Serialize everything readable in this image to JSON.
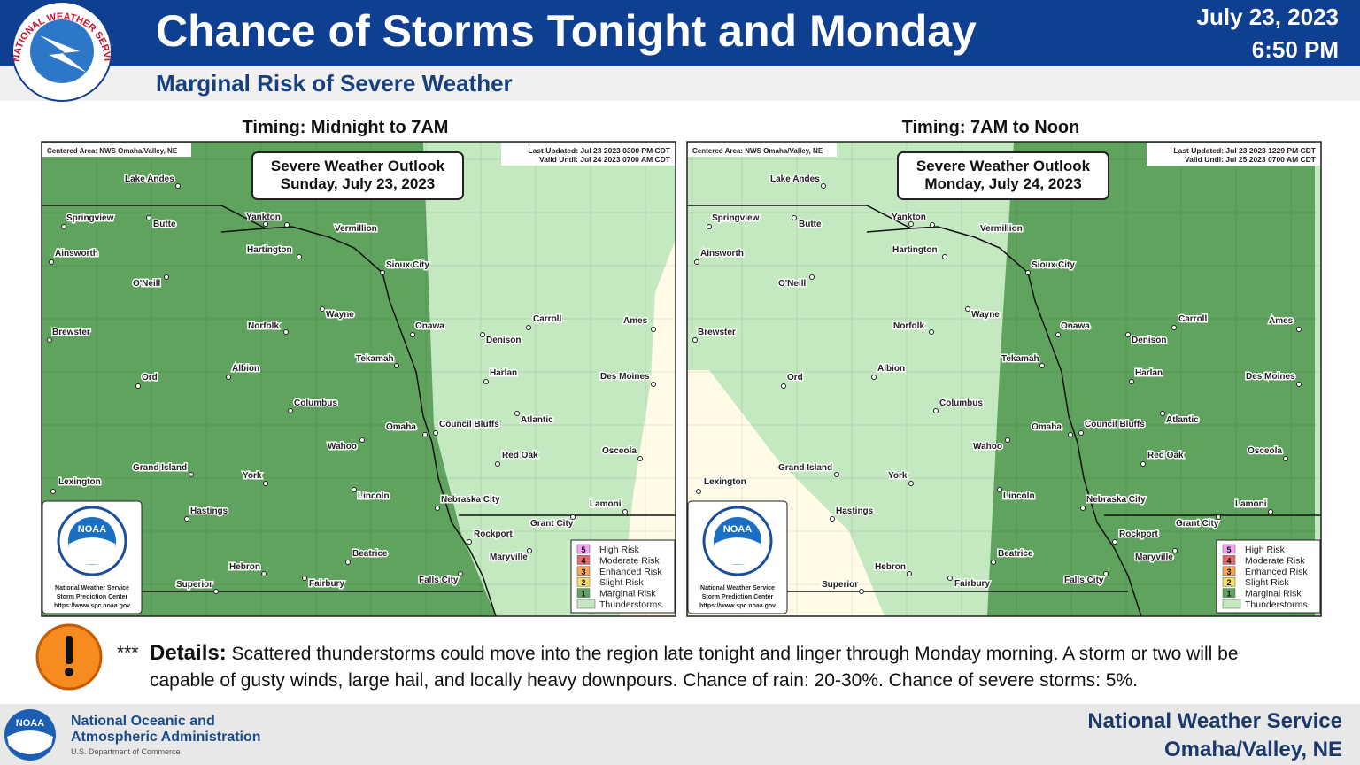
{
  "header": {
    "logo_text": "NATIONAL WEATHER SERVICE",
    "title": "Chance of Storms Tonight and Monday",
    "date": "July 23, 2023",
    "time": "6:50 PM",
    "subtitle": "Marginal Risk of Severe Weather"
  },
  "maps": [
    {
      "timing": "Timing: Midnight to 7AM",
      "outlook_title": "Severe Weather Outlook",
      "outlook_date": "Sunday, July 23, 2023",
      "centered_area": "Centered Area: NWS Omaha/Valley, NE",
      "last_updated": "Last Updated: Jul 23 2023 0300 PM CDT",
      "valid_until": "Valid Until: Jul 24 2023 0700 AM CDT"
    },
    {
      "timing": "Timing: 7AM to Noon",
      "outlook_title": "Severe Weather Outlook",
      "outlook_date": "Monday, July 24, 2023",
      "centered_area": "Centered Area: NWS Omaha/Valley, NE",
      "last_updated": "Last Updated: Jul 23 2023 1229 PM CDT",
      "valid_until": "Valid Until: Jul 25 2023 0700 AM CDT"
    }
  ],
  "cities": [
    "Lake Andes",
    "Springview",
    "Butte",
    "Yankton",
    "Vermillion",
    "Ainsworth",
    "Hartington",
    "Sioux City",
    "O'Neill",
    "Wayne",
    "Norfolk",
    "Onawa",
    "Brewster",
    "Denison",
    "Carroll",
    "Ames",
    "Tekamah",
    "Albion",
    "Harlan",
    "Des Moines",
    "Ord",
    "Columbus",
    "Atlantic",
    "Council Bluffs",
    "Omaha",
    "Wahoo",
    "Red Oak",
    "Osceola",
    "Grand Island",
    "York",
    "Lexington",
    "Lincoln",
    "Nebraska City",
    "Lamoni",
    "Hastings",
    "Grant City",
    "Rockport",
    "Maryville",
    "Beatrice",
    "Hebron",
    "Falls City",
    "Superior",
    "Fairbury"
  ],
  "legend": [
    {
      "level": "5",
      "label": "High Risk"
    },
    {
      "level": "4",
      "label": "Moderate Risk"
    },
    {
      "level": "3",
      "label": "Enhanced Risk"
    },
    {
      "level": "2",
      "label": "Slight Risk"
    },
    {
      "level": "1",
      "label": "Marginal Risk"
    },
    {
      "label": "Thunderstorms"
    }
  ],
  "noaa_badge": {
    "logo": "NOAA",
    "lines": [
      "National Weather Service",
      "Storm Prediction Center",
      "https://www.spc.noaa.gov"
    ]
  },
  "details": {
    "marker": "***",
    "label": "Details:",
    "text": "Scattered thunderstorms could move into the region late tonight and linger through Monday morning. A storm or two will be capable of gusty winds, large hail, and locally heavy downpours. Chance of rain: 20-30%. Chance of severe storms: 5%."
  },
  "footer": {
    "noaa_logo": "NOAA",
    "agency": [
      "National Oceanic and",
      "Atmospheric Administration"
    ],
    "department": "U.S. Department of Commerce",
    "office": [
      "National Weather Service",
      "Omaha/Valley, NE"
    ]
  }
}
